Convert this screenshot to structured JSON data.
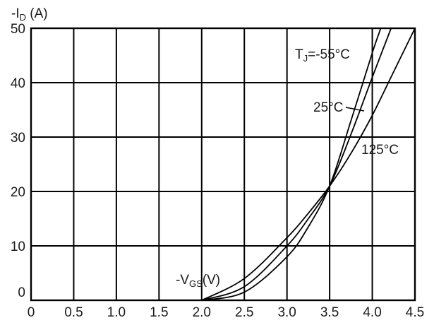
{
  "chart_data": {
    "type": "line",
    "title": "",
    "ylabel": {
      "prefix": "-I",
      "sub": "D",
      "suffix": " (A)"
    },
    "xlabel": {
      "prefix": "-V",
      "sub": "GS",
      "suffix": "(V)"
    },
    "xlim": [
      0,
      4.5
    ],
    "ylim": [
      0,
      50
    ],
    "x_ticks": [
      "0",
      "0.5",
      "1.0",
      "1.5",
      "2.0",
      "2.5",
      "3.0",
      "3.5",
      "4.0",
      "4.5"
    ],
    "y_ticks": [
      "0",
      "10",
      "20",
      "30",
      "40",
      "50"
    ],
    "grid": true,
    "series": [
      {
        "name": "T_J=-55°C",
        "label": {
          "prefix": "T",
          "sub": "J",
          "suffix": "=-55°C"
        },
        "x": [
          2.0,
          2.5,
          3.0,
          3.25,
          3.5,
          3.75,
          4.0,
          4.1
        ],
        "y": [
          0,
          1.5,
          8,
          13.5,
          21,
          33,
          45.5,
          50
        ]
      },
      {
        "name": "25°C",
        "label": {
          "prefix": "25°C",
          "sub": "",
          "suffix": ""
        },
        "x": [
          2.0,
          2.5,
          3.0,
          3.25,
          3.5,
          3.75,
          4.0,
          4.22
        ],
        "y": [
          0,
          2.5,
          10,
          15,
          21,
          30.5,
          41,
          50
        ]
      },
      {
        "name": "125°C",
        "label": {
          "prefix": "125°C",
          "sub": "",
          "suffix": ""
        },
        "x": [
          2.0,
          2.5,
          3.0,
          3.25,
          3.5,
          3.75,
          4.0,
          4.25,
          4.5
        ],
        "y": [
          0,
          4,
          11.5,
          16,
          21,
          27,
          34,
          42,
          50
        ]
      }
    ]
  }
}
